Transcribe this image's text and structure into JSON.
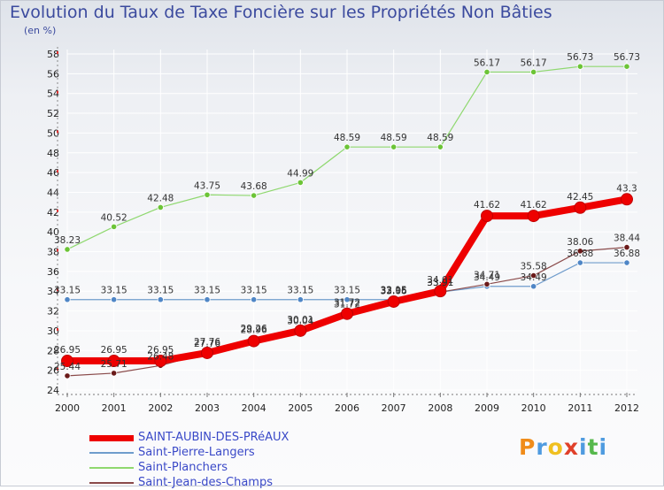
{
  "title": "Evolution du Taux de Taxe Foncière sur les Propriétés Non Bâties",
  "subtitle": "(en %)",
  "logo": {
    "text": "Proxiti",
    "letters": [
      "P",
      "r",
      "o",
      "x",
      "i",
      "t",
      "i"
    ],
    "colors": [
      "#f08c1a",
      "#4f9be0",
      "#f0c020",
      "#e0402a",
      "#4f9be0",
      "#56b84c",
      "#4f9be0"
    ]
  },
  "chart_data": {
    "type": "line",
    "title": "Evolution du Taux de Taxe Foncière sur les Propriétés Non Bâties",
    "ylabel": "(en %)",
    "xlabel": "",
    "ylim": [
      24,
      58
    ],
    "yticks": [
      24,
      26,
      28,
      30,
      32,
      34,
      36,
      38,
      40,
      42,
      44,
      46,
      48,
      50,
      52,
      54,
      56,
      58
    ],
    "categories": [
      "2000",
      "2001",
      "2002",
      "2003",
      "2004",
      "2005",
      "2006",
      "2007",
      "2008",
      "2009",
      "2010",
      "2011",
      "2012"
    ],
    "grid": true,
    "series": [
      {
        "name": "SAINT-AUBIN-DES-PRéAUX",
        "color": "#ee0000",
        "markerColor": "#ee0000",
        "width": 8,
        "values": [
          26.95,
          26.95,
          26.95,
          27.76,
          28.96,
          30.01,
          31.72,
          32.95,
          34.01,
          41.62,
          41.62,
          42.45,
          43.3
        ],
        "labels": [
          "26.95",
          "26.95",
          "26.95",
          "27.76",
          "28.96",
          "30.01",
          "31.72",
          "32.95",
          "34.01",
          "41.62",
          "41.62",
          "42.45",
          "43.3"
        ]
      },
      {
        "name": "Saint-Pierre-Langers",
        "color": "#6f9ccc",
        "markerColor": "#4f86c6",
        "width": 1.2,
        "values": [
          33.15,
          33.15,
          33.15,
          33.15,
          33.15,
          33.15,
          33.15,
          33.15,
          33.91,
          34.49,
          34.49,
          36.88,
          36.88
        ],
        "labels": [
          "33.15",
          "33.15",
          "33.15",
          "33.15",
          "33.15",
          "33.15",
          "33.15",
          "33.15",
          "33.91",
          "34.49",
          "34.49",
          "36.88",
          "36.88"
        ]
      },
      {
        "name": "Saint-Planchers",
        "color": "#8fd86f",
        "markerColor": "#6cc437",
        "width": 1.2,
        "values": [
          38.23,
          40.52,
          42.48,
          43.75,
          43.68,
          44.99,
          48.59,
          48.59,
          48.59,
          56.17,
          56.17,
          56.73,
          56.73
        ],
        "labels": [
          "38.23",
          "40.52",
          "42.48",
          "43.75",
          "43.68",
          "44.99",
          "48.59",
          "48.59",
          "48.59",
          "56.17",
          "56.17",
          "56.73",
          "56.73"
        ]
      },
      {
        "name": "Saint-Jean-des-Champs",
        "color": "#8a4a4a",
        "markerColor": "#6a1a1a",
        "width": 1.2,
        "values": [
          25.44,
          25.71,
          26.48,
          27.76,
          29.26,
          30.04,
          31.72,
          33.06,
          33.91,
          34.71,
          35.58,
          38.06,
          38.44
        ],
        "labels": [
          "25.44",
          "25.71",
          "26.48",
          "27.76",
          "29.26",
          "30.04",
          "31.72",
          "33.06",
          "33.91",
          "34.71",
          "35.58",
          "38.06",
          "38.44"
        ]
      }
    ]
  }
}
